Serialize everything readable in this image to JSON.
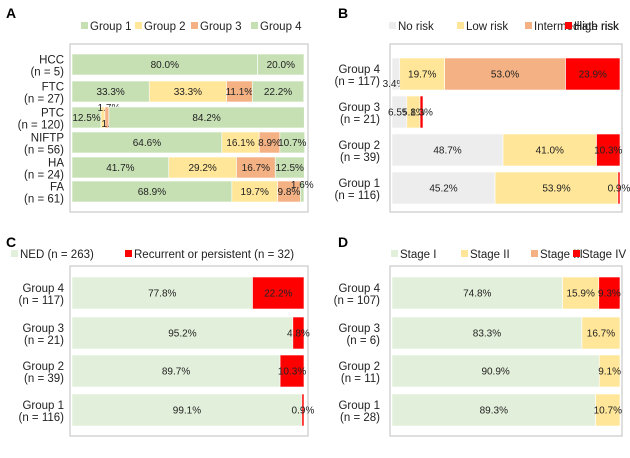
{
  "colors": {
    "light_green": "#c6e0b4",
    "very_light_green": "#e2efda",
    "light_yellow": "#ffe699",
    "orange": "#f4b183",
    "red": "#ff0000",
    "grey": "#ededed"
  },
  "chart_data": [
    {
      "panel": "A",
      "type": "bar",
      "orientation": "horizontal",
      "stacked": true,
      "percent": true,
      "legend": [
        "Group 1",
        "Group 2",
        "Group 3",
        "Group 4"
      ],
      "categories": [
        "HCC",
        "(n = 5)",
        "FTC",
        "(n = 27)",
        "PTC",
        "(n = 120)",
        "NIFTP",
        "(n = 56)",
        "HA",
        "(n = 24)",
        "FA",
        "(n = 61)"
      ],
      "rows": [
        {
          "name": "HCC",
          "n": "(n = 5)",
          "values": [
            80.0,
            0,
            0,
            20.0
          ],
          "labels": [
            "80.0%",
            "",
            "",
            "20.0%"
          ]
        },
        {
          "name": "FTC",
          "n": "(n = 27)",
          "values": [
            33.3,
            33.3,
            11.1,
            22.2
          ],
          "labels": [
            "33.3%",
            "33.3%",
            "11.1%",
            "22.2%"
          ]
        },
        {
          "name": "PTC",
          "n": "(n = 120)",
          "values": [
            12.5,
            1.7,
            1.7,
            84.2
          ],
          "labels": [
            "12.5%",
            "1.7%",
            "1.7%",
            "84.2%"
          ]
        },
        {
          "name": "NIFTP",
          "n": "(n = 56)",
          "values": [
            64.6,
            16.1,
            8.9,
            10.7
          ],
          "labels": [
            "64.6%",
            "16.1%",
            "8.9%",
            "10.7%"
          ]
        },
        {
          "name": "HA",
          "n": "(n = 24)",
          "values": [
            41.7,
            29.2,
            16.7,
            12.5
          ],
          "labels": [
            "41.7%",
            "29.2%",
            "16.7%",
            "12.5%"
          ]
        },
        {
          "name": "FA",
          "n": "(n = 61)",
          "values": [
            68.9,
            19.7,
            9.8,
            1.6
          ],
          "labels": [
            "68.9%",
            "19.7%",
            "9.8%",
            "1.6%"
          ]
        }
      ]
    },
    {
      "panel": "B",
      "type": "bar",
      "orientation": "horizontal",
      "stacked": true,
      "percent": true,
      "legend": [
        "No risk",
        "Low risk",
        "Intermediate risk",
        "High risk"
      ],
      "categories": [
        "Group 4",
        "(n = 117)",
        "Group 3",
        "(n = 21)",
        "Group 2",
        "(n = 39)",
        "Group 1",
        "(n = 116)"
      ],
      "rows": [
        {
          "name": "Group 4",
          "n": "(n = 117)",
          "values": [
            3.4,
            19.7,
            53.0,
            23.9
          ],
          "labels": [
            "3.4%",
            "19.7%",
            "53.0%",
            "23.9%"
          ]
        },
        {
          "name": "Group 3",
          "n": "(n = 21)",
          "values": [
            6.5,
            5.8,
            0,
            1.3
          ],
          "labels": [
            "6.5%",
            "5.8%",
            "",
            "1.3%"
          ]
        },
        {
          "name": "Group 2",
          "n": "(n = 39)",
          "values": [
            48.7,
            41.0,
            0,
            10.3
          ],
          "labels": [
            "48.7%",
            "41.0%",
            "",
            "10.3%"
          ]
        },
        {
          "name": "Group 1",
          "n": "(n = 116)",
          "values": [
            45.2,
            53.9,
            0,
            0.9
          ],
          "labels": [
            "45.2%",
            "53.9%",
            "",
            "0.9%"
          ]
        }
      ]
    },
    {
      "panel": "C",
      "type": "bar",
      "orientation": "horizontal",
      "stacked": true,
      "percent": true,
      "legend": [
        "NED (n = 263)",
        "Recurrent or persistent (n = 32)"
      ],
      "categories": [
        "Group 4",
        "(n = 117)",
        "Group 3",
        "(n = 21)",
        "Group 2",
        "(n = 39)",
        "Group 1",
        "(n = 116)"
      ],
      "rows": [
        {
          "name": "Group 4",
          "n": "(n = 117)",
          "values": [
            77.8,
            22.2
          ],
          "labels": [
            "77.8%",
            "22.2%"
          ]
        },
        {
          "name": "Group 3",
          "n": "(n = 21)",
          "values": [
            95.2,
            4.8
          ],
          "labels": [
            "95.2%",
            "4.8%"
          ]
        },
        {
          "name": "Group 2",
          "n": "(n = 39)",
          "values": [
            89.7,
            10.3
          ],
          "labels": [
            "89.7%",
            "10.3%"
          ]
        },
        {
          "name": "Group 1",
          "n": "(n = 116)",
          "values": [
            99.1,
            0.9
          ],
          "labels": [
            "99.1%",
            "0.9%"
          ]
        }
      ]
    },
    {
      "panel": "D",
      "type": "bar",
      "orientation": "horizontal",
      "stacked": true,
      "percent": true,
      "legend": [
        "Stage I",
        "Stage II",
        "Stage III",
        "Stage IV"
      ],
      "categories": [
        "Group 4",
        "(n = 107)",
        "Group 3",
        "(n = 6)",
        "Group 2",
        "(n = 11)",
        "Group 1",
        "(n = 28)"
      ],
      "rows": [
        {
          "name": "Group 4",
          "n": "(n = 107)",
          "values": [
            74.8,
            15.9,
            0,
            9.3
          ],
          "labels": [
            "74.8%",
            "15.9%",
            "",
            "9.3%"
          ]
        },
        {
          "name": "Group 3",
          "n": "(n = 6)",
          "values": [
            83.3,
            16.7,
            0,
            0
          ],
          "labels": [
            "83.3%",
            "16.7%",
            "",
            ""
          ]
        },
        {
          "name": "Group 2",
          "n": "(n = 11)",
          "values": [
            90.9,
            9.1,
            0,
            0
          ],
          "labels": [
            "90.9%",
            "9.1%",
            "",
            ""
          ]
        },
        {
          "name": "Group 1",
          "n": "(n = 28)",
          "values": [
            89.3,
            10.7,
            0,
            0
          ],
          "labels": [
            "89.3%",
            "10.7%",
            "",
            ""
          ]
        }
      ]
    }
  ]
}
